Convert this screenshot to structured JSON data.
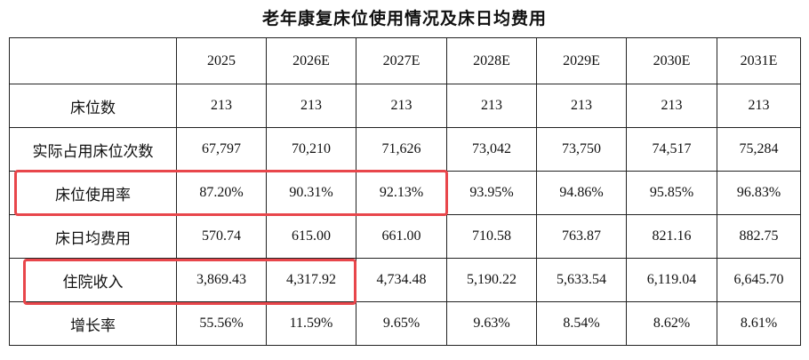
{
  "header": {
    "title": "老年康复床位使用情况及床日均费用"
  },
  "table": {
    "columns": [
      "2025",
      "2026E",
      "2027E",
      "2028E",
      "2029E",
      "2030E",
      "2031E"
    ],
    "rows": [
      {
        "label": "床位数",
        "values": [
          "213",
          "213",
          "213",
          "213",
          "213",
          "213",
          "213"
        ]
      },
      {
        "label": "实际占用床位次数",
        "values": [
          "67,797",
          "70,210",
          "71,626",
          "73,042",
          "73,750",
          "74,517",
          "75,284"
        ]
      },
      {
        "label": "床位使用率",
        "values": [
          "87.20%",
          "90.31%",
          "92.13%",
          "93.95%",
          "94.86%",
          "95.85%",
          "96.83%"
        ]
      },
      {
        "label": "床日均费用",
        "values": [
          "570.74",
          "615.00",
          "661.00",
          "710.58",
          "763.87",
          "821.16",
          "882.75"
        ]
      },
      {
        "label": "住院收入",
        "values": [
          "3,869.43",
          "4,317.92",
          "4,734.48",
          "5,190.22",
          "5,633.54",
          "6,119.04",
          "6,645.70"
        ]
      },
      {
        "label": "增长率",
        "values": [
          "55.56%",
          "11.59%",
          "9.65%",
          "9.63%",
          "8.54%",
          "8.62%",
          "8.61%"
        ]
      }
    ]
  }
}
